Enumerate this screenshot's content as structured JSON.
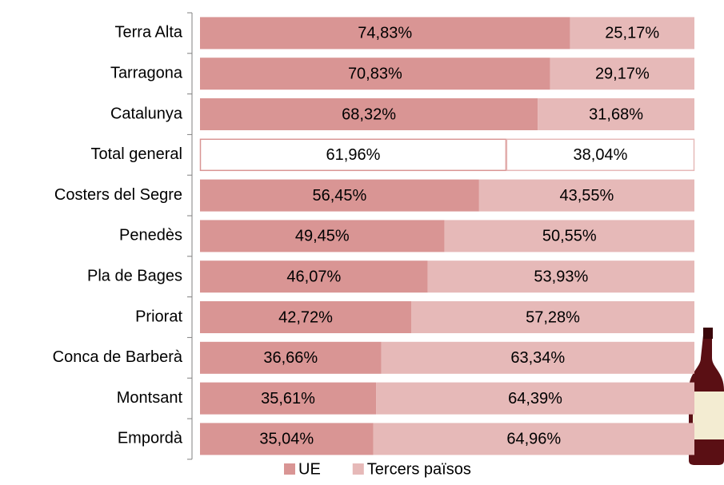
{
  "chart_data": {
    "type": "stacked-bar-horizontal",
    "categories": [
      "Terra Alta",
      "Tarragona",
      "Catalunya",
      "Total general",
      "Costers del Segre",
      "Penedès",
      "Pla de Bages",
      "Priorat",
      "Conca de Barberà",
      "Montsant",
      "Empordà"
    ],
    "series": [
      {
        "name": "UE",
        "color": "#d99594",
        "values": [
          74.83,
          70.83,
          68.32,
          61.96,
          56.45,
          49.45,
          46.07,
          42.72,
          36.66,
          35.61,
          35.04
        ],
        "value_labels": [
          "74,83%",
          "70,83%",
          "68,32%",
          "61,96%",
          "56,45%",
          "49,45%",
          "46,07%",
          "42,72%",
          "36,66%",
          "35,61%",
          "35,04%"
        ]
      },
      {
        "name": "Tercers països",
        "color": "#e6b9b8",
        "values": [
          25.17,
          29.17,
          31.68,
          38.04,
          43.55,
          50.55,
          53.93,
          57.28,
          63.34,
          64.39,
          64.96
        ],
        "value_labels": [
          "25,17%",
          "29,17%",
          "31,68%",
          "38,04%",
          "43,55%",
          "50,55%",
          "53,93%",
          "57,28%",
          "63,34%",
          "64,39%",
          "64,96%"
        ]
      }
    ],
    "xlim": [
      0,
      100
    ],
    "highlight_category": "Total general",
    "legend": "bottom"
  }
}
